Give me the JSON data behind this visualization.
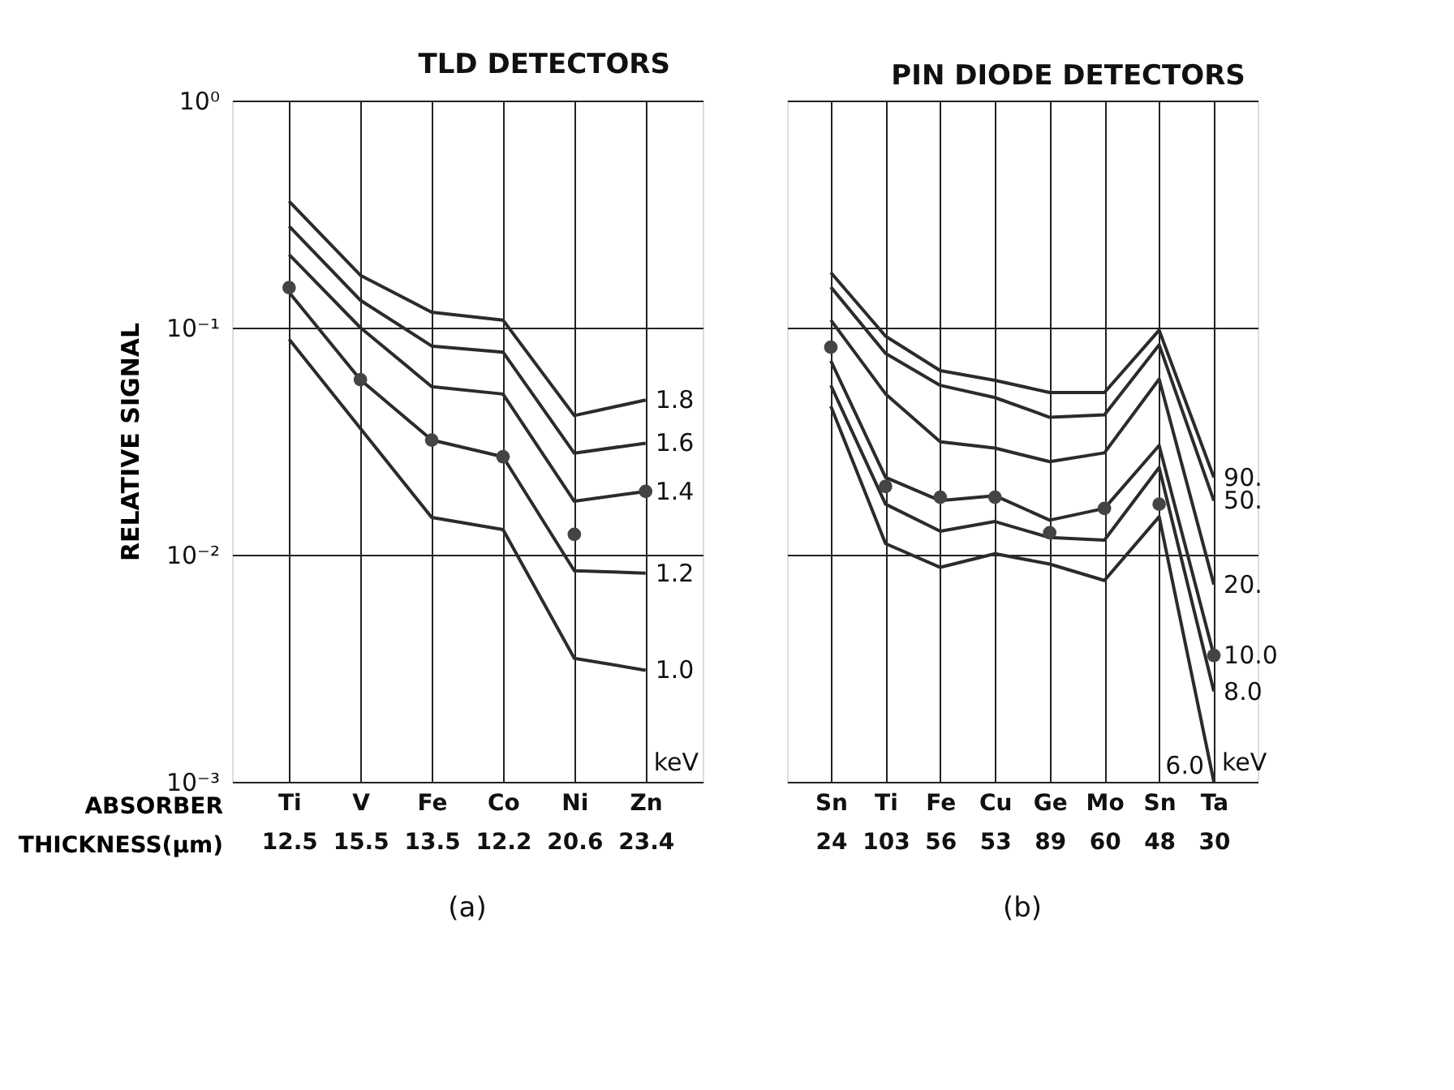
{
  "chart_data": [
    {
      "type": "line",
      "title": "TLD DETECTORS",
      "xlabel": "ABSORBER\nTHICKNESS(μm)",
      "ylabel": "RELATIVE SIGNAL",
      "categories": [
        "Ti\n12.5",
        "V\n15.5",
        "Fe\n13.5",
        "Co\n12.2",
        "Ni\n20.6",
        "Zn\n23.4"
      ],
      "series": [
        {
          "name": "1.8",
          "color": "#2b2b2b",
          "values": [
            0.36,
            0.17,
            0.117,
            0.108,
            0.041,
            0.048
          ]
        },
        {
          "name": "1.6",
          "color": "#2b2b2b",
          "values": [
            0.28,
            0.132,
            0.083,
            0.078,
            0.028,
            0.031
          ]
        },
        {
          "name": "1.4",
          "color": "#2b2b2b",
          "values": [
            0.21,
            0.1,
            0.055,
            0.051,
            0.0172,
            0.019
          ]
        },
        {
          "name": "1.2",
          "color": "#2b2b2b",
          "values": [
            0.143,
            0.059,
            0.032,
            0.027,
            0.0085,
            0.0083
          ]
        },
        {
          "name": "1.0",
          "color": "#2b2b2b",
          "values": [
            0.089,
            0.036,
            0.0146,
            0.0129,
            0.0035,
            0.0031
          ]
        },
        {
          "type": "scatter",
          "marker": "circle",
          "color": "#444444",
          "values": [
            0.15,
            0.059,
            0.032,
            0.027,
            0.0123,
            0.019
          ]
        }
      ],
      "ylim": [
        0.001,
        1
      ],
      "yticks": [
        {
          "value": 1,
          "label": "10⁰"
        },
        {
          "value": 0.1,
          "label": "10⁻¹"
        },
        {
          "value": 0.01,
          "label": "10⁻²"
        },
        {
          "value": 0.001,
          "label": "10⁻³"
        }
      ],
      "log": true,
      "grid": true,
      "marker": "none",
      "line_style": "solid",
      "annotations": [
        "keV",
        "(a)"
      ]
    },
    {
      "type": "line",
      "title": "PIN DIODE DETECTORS",
      "categories": [
        "Sn\n24",
        "Ti\n103",
        "Fe\n56",
        "Cu\n53",
        "Ge\n89",
        "Mo\n60",
        "Sn\n48",
        "Ta\n30"
      ],
      "series": [
        {
          "name": "90.",
          "color": "#2b2b2b",
          "values": [
            0.175,
            0.0917,
            0.0647,
            0.0586,
            0.0518,
            0.0518,
            0.0975,
            0.0219
          ]
        },
        {
          "name": "50.",
          "color": "#2b2b2b",
          "values": [
            0.151,
            0.077,
            0.0557,
            0.0492,
            0.0403,
            0.0413,
            0.084,
            0.0173
          ]
        },
        {
          "name": "20.",
          "color": "#2b2b2b",
          "values": [
            0.108,
            0.0511,
            0.0314,
            0.0295,
            0.0257,
            0.0281,
            0.0593,
            0.0074
          ]
        },
        {
          "name": "10.0",
          "color": "#2b2b2b",
          "values": [
            0.0715,
            0.0219,
            0.0173,
            0.0182,
            0.0142,
            0.016,
            0.0303,
            0.0036
          ]
        },
        {
          "name": "8.0",
          "color": "#2b2b2b",
          "values": [
            0.0557,
            0.0167,
            0.0127,
            0.014,
            0.0119,
            0.0116,
            0.0242,
            0.0025
          ]
        },
        {
          "name": "6.0",
          "color": "#2b2b2b",
          "values": [
            0.0451,
            0.0112,
            0.0088,
            0.0101,
            0.0091,
            0.0077,
            0.0147,
            0.001
          ]
        },
        {
          "type": "scatter",
          "marker": "circle",
          "color": "#444444",
          "values": [
            0.082,
            0.02,
            0.0179,
            0.0179,
            0.0125,
            0.016,
            0.0167,
            0.0036
          ]
        }
      ],
      "ylim": [
        0.001,
        1
      ],
      "yticks": [
        {
          "value": 1,
          "label": null
        },
        {
          "value": 0.1,
          "label": null
        },
        {
          "value": 0.01,
          "label": null
        },
        {
          "value": 0.001,
          "label": null
        }
      ],
      "log": true,
      "grid": true,
      "tick_labels": "x",
      "marker": "none",
      "line_style": "solid",
      "annotations": [
        "keV",
        "(b)"
      ]
    }
  ]
}
